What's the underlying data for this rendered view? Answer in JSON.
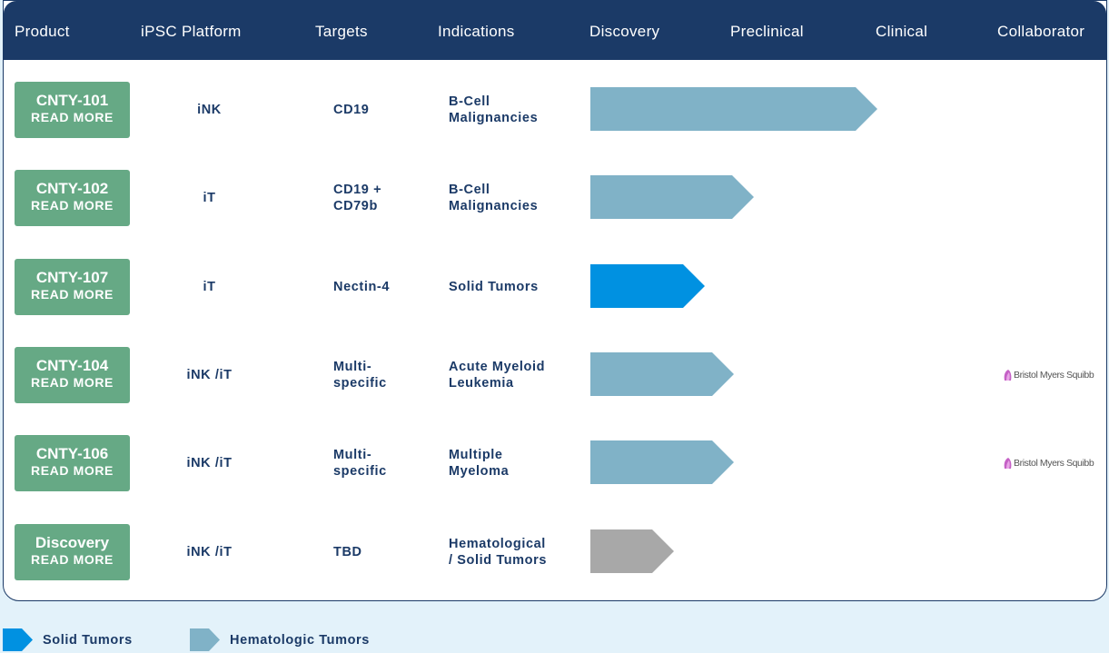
{
  "header": {
    "columns": [
      "Product",
      "iPSC Platform",
      "Targets",
      "Indications",
      "Discovery",
      "Preclinical",
      "Clinical",
      "Collaborator"
    ]
  },
  "colors": {
    "header_bg": "#1b3a67",
    "product_button": "#66a985",
    "hematologic": "#80b2c7",
    "solid": "#0091e1",
    "discovery": "#a8a8a8",
    "page_bg": "#e3f2fa"
  },
  "rows": [
    {
      "product": "CNTY-101",
      "read_more": "READ MORE",
      "platform": "iNK",
      "targets": "CD19",
      "indications": "B-Cell\nMalignancies",
      "stage_progress": 1.0,
      "bar_type": "hematologic",
      "collaborator": ""
    },
    {
      "product": "CNTY-102",
      "read_more": "READ MORE",
      "platform": "iT",
      "targets": "CD19 +\nCD79b",
      "indications": "B-Cell\nMalignancies",
      "stage_progress": 0.57,
      "bar_type": "hematologic",
      "collaborator": ""
    },
    {
      "product": "CNTY-107",
      "read_more": "READ MORE",
      "platform": "iT",
      "targets": "Nectin-4",
      "indications": "Solid Tumors",
      "stage_progress": 0.4,
      "bar_type": "solid",
      "collaborator": ""
    },
    {
      "product": "CNTY-104",
      "read_more": "READ MORE",
      "platform": "iNK /iT",
      "targets": "Multi-\nspecific",
      "indications": "Acute Myeloid\nLeukemia",
      "stage_progress": 0.5,
      "bar_type": "hematologic",
      "collaborator": "Bristol Myers Squibb"
    },
    {
      "product": "CNTY-106",
      "read_more": "READ MORE",
      "platform": "iNK /iT",
      "targets": "Multi-\nspecific",
      "indications": "Multiple\nMyeloma",
      "stage_progress": 0.5,
      "bar_type": "hematologic",
      "collaborator": "Bristol Myers Squibb"
    },
    {
      "product": "Discovery",
      "read_more": "READ MORE",
      "platform": "iNK /iT",
      "targets": "TBD",
      "indications": "Hematological\n/ Solid Tumors",
      "stage_progress": 0.29,
      "bar_type": "discovery",
      "collaborator": ""
    }
  ],
  "legend": {
    "items": [
      {
        "label": "Solid Tumors",
        "type": "solid"
      },
      {
        "label": "Hematologic Tumors",
        "type": "hematologic"
      }
    ]
  }
}
